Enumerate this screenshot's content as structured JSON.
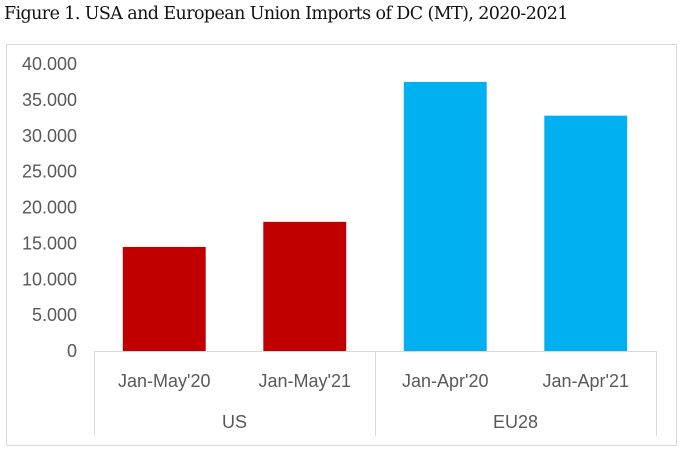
{
  "chart_data": {
    "type": "bar",
    "title": "Figure 1. USA and European Union Imports of DC (MT), 2020-2021",
    "xlabel": "",
    "ylabel": "",
    "ylim": [
      0,
      40000
    ],
    "yticks": [
      0,
      5000,
      10000,
      15000,
      20000,
      25000,
      30000,
      35000,
      40000
    ],
    "ytick_labels": [
      "0",
      "5.000",
      "10.000",
      "15.000",
      "20.000",
      "25.000",
      "30.000",
      "35.000",
      "40.000"
    ],
    "grid": false,
    "legend": "none",
    "categories": [
      "Jan-May'20",
      "Jan-May'21",
      "Jan-Apr'20",
      "Jan-Apr'21"
    ],
    "groups": [
      {
        "label": "US",
        "categories": [
          0,
          1
        ],
        "color": "#C00000"
      },
      {
        "label": "EU28",
        "categories": [
          2,
          3
        ],
        "color": "#00B0F0"
      }
    ],
    "values": [
      14500,
      18000,
      37500,
      32800
    ],
    "colors": [
      "#C00000",
      "#C00000",
      "#00B0F0",
      "#00B0F0"
    ]
  }
}
